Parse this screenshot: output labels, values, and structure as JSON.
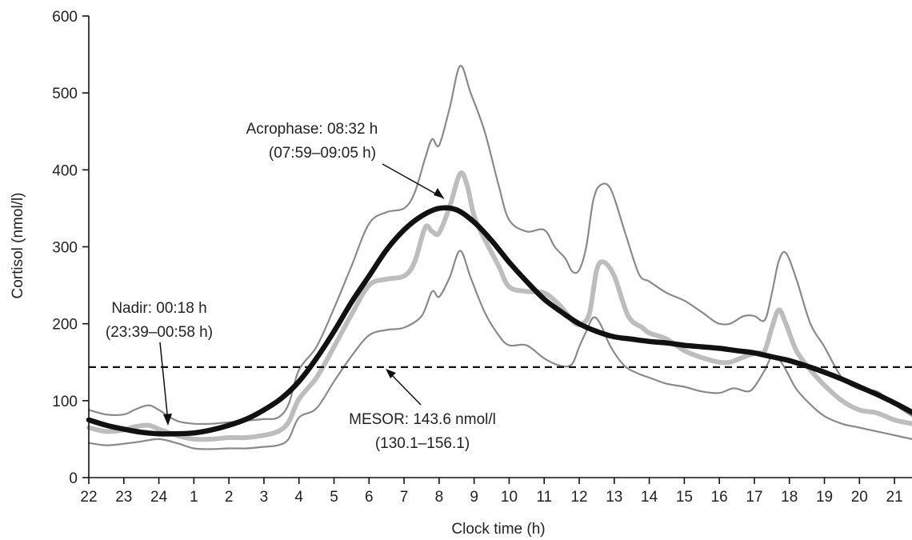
{
  "chart_data": {
    "type": "line",
    "xlabel": "Clock time (h)",
    "ylabel": "Cortisol (nmol/l)",
    "xlim": [
      22,
      45.5
    ],
    "ylim": [
      0,
      600
    ],
    "x_ticks": [
      22,
      23,
      24,
      25,
      26,
      27,
      28,
      29,
      30,
      31,
      32,
      33,
      34,
      35,
      36,
      37,
      38,
      39,
      40,
      41,
      42,
      43,
      44,
      45
    ],
    "x_tick_labels": [
      "22",
      "23",
      "24",
      "1",
      "2",
      "3",
      "4",
      "5",
      "6",
      "7",
      "8",
      "9",
      "10",
      "11",
      "12",
      "13",
      "14",
      "15",
      "16",
      "17",
      "18",
      "19",
      "20",
      "21"
    ],
    "y_ticks": [
      0,
      100,
      200,
      300,
      400,
      500,
      600
    ],
    "series": [
      {
        "role": "upper-bound",
        "color": "#8a8a8a",
        "width": 2.2,
        "x": [
          22,
          22.5,
          23,
          23.3,
          23.7,
          24,
          24.5,
          25,
          25.5,
          26,
          26.5,
          27,
          27.4,
          27.7,
          28,
          28.5,
          29,
          29.5,
          30,
          30.5,
          31,
          31.3,
          31.6,
          31.8,
          32,
          32.3,
          32.6,
          32.9,
          33.3,
          33.7,
          34,
          34.5,
          35,
          35.3,
          35.6,
          35.8,
          36,
          36.2,
          36.4,
          36.6,
          36.9,
          37.3,
          37.7,
          38,
          38.5,
          39,
          39.5,
          39.8,
          40,
          40.3,
          40.7,
          41,
          41.3,
          41.5,
          41.7,
          41.9,
          42.2,
          42.6,
          43,
          43.5,
          44,
          44.5,
          45,
          45.5
        ],
        "y": [
          88,
          82,
          82,
          88,
          94,
          88,
          74,
          70,
          70,
          72,
          74,
          76,
          78,
          95,
          140,
          170,
          220,
          275,
          330,
          345,
          350,
          370,
          415,
          440,
          432,
          480,
          535,
          500,
          450,
          380,
          335,
          320,
          322,
          300,
          285,
          268,
          270,
          300,
          360,
          380,
          375,
          320,
          265,
          255,
          240,
          230,
          215,
          205,
          200,
          200,
          210,
          210,
          205,
          240,
          282,
          292,
          258,
          200,
          170,
          130,
          115,
          112,
          95,
          80
        ]
      },
      {
        "role": "lower-bound",
        "color": "#8a8a8a",
        "width": 2.2,
        "x": [
          22,
          22.5,
          23,
          23.5,
          24,
          24.5,
          25,
          25.5,
          26,
          26.5,
          27,
          27.4,
          27.7,
          28,
          28.5,
          29,
          29.5,
          30,
          30.5,
          31,
          31.5,
          31.8,
          32,
          32.3,
          32.6,
          32.9,
          33.3,
          33.7,
          34,
          34.5,
          35,
          35.5,
          35.8,
          36,
          36.2,
          36.4,
          36.6,
          36.9,
          37.3,
          37.7,
          38,
          38.5,
          39,
          39.5,
          40,
          40.4,
          40.8,
          41,
          41.3,
          41.5,
          41.7,
          41.9,
          42.2,
          42.6,
          43,
          43.5,
          44,
          44.5,
          45,
          45.5
        ],
        "y": [
          45,
          42,
          44,
          47,
          50,
          45,
          38,
          37,
          38,
          38,
          40,
          42,
          50,
          78,
          90,
          125,
          158,
          185,
          192,
          195,
          210,
          242,
          235,
          260,
          295,
          260,
          215,
          185,
          172,
          172,
          155,
          145,
          148,
          170,
          190,
          208,
          200,
          170,
          145,
          135,
          130,
          122,
          118,
          112,
          110,
          116,
          112,
          118,
          140,
          158,
          154,
          140,
          115,
          95,
          80,
          70,
          65,
          60,
          55,
          50
        ]
      },
      {
        "role": "observed-mean",
        "color": "#bdbdbd",
        "width": 6,
        "x": [
          22,
          22.5,
          23,
          23.3,
          23.7,
          24,
          24.5,
          25,
          25.5,
          26,
          26.5,
          27,
          27.4,
          27.7,
          28,
          28.5,
          29,
          29.5,
          30,
          30.5,
          31,
          31.3,
          31.6,
          31.8,
          32,
          32.3,
          32.6,
          32.8,
          33,
          33.3,
          33.7,
          34,
          34.5,
          35,
          35.4,
          35.7,
          35.9,
          36.1,
          36.3,
          36.5,
          36.7,
          37,
          37.4,
          37.8,
          38,
          38.5,
          39,
          39.5,
          40,
          40.3,
          40.6,
          40.9,
          41.1,
          41.3,
          41.5,
          41.7,
          41.9,
          42.2,
          42.6,
          43,
          43.5,
          44,
          44.5,
          45,
          45.5
        ],
        "y": [
          65,
          60,
          62,
          66,
          68,
          63,
          55,
          50,
          50,
          52,
          52,
          55,
          60,
          72,
          102,
          130,
          170,
          212,
          250,
          258,
          262,
          280,
          325,
          320,
          318,
          352,
          395,
          380,
          340,
          310,
          275,
          248,
          242,
          240,
          226,
          210,
          200,
          200,
          215,
          270,
          280,
          262,
          210,
          195,
          188,
          180,
          165,
          156,
          150,
          150,
          155,
          160,
          162,
          165,
          195,
          218,
          200,
          165,
          140,
          120,
          100,
          88,
          84,
          75,
          70
        ]
      },
      {
        "role": "cosinor-fit",
        "color": "#111111",
        "width": 6.5,
        "x": [
          22,
          22.5,
          23,
          23.5,
          24,
          24.5,
          25,
          25.5,
          26,
          26.5,
          27,
          27.5,
          28,
          28.5,
          29,
          29.5,
          30,
          30.5,
          31,
          31.5,
          32,
          32.5,
          33,
          33.5,
          34,
          34.5,
          35,
          35.5,
          36,
          36.5,
          37,
          37.5,
          38,
          38.5,
          39,
          39.5,
          40,
          40.5,
          41,
          41.5,
          42,
          42.5,
          43,
          43.5,
          44,
          44.5,
          45,
          45.5
        ],
        "y": [
          75,
          68,
          63,
          59,
          57,
          57,
          58,
          62,
          68,
          76,
          88,
          103,
          125,
          155,
          190,
          228,
          262,
          296,
          322,
          340,
          350,
          348,
          332,
          308,
          280,
          255,
          232,
          215,
          200,
          190,
          183,
          180,
          177,
          175,
          172,
          170,
          168,
          165,
          162,
          157,
          152,
          145,
          137,
          128,
          118,
          108,
          97,
          85
        ]
      }
    ],
    "mesor": {
      "value": 143.6,
      "color": "#111111"
    },
    "annotations": [
      {
        "text": [
          "Acrophase: 08:32 h",
          "(07:59–09:05 h)"
        ]
      },
      {
        "text": [
          "Nadir: 00:18 h",
          "(23:39–00:58 h)"
        ]
      },
      {
        "text": [
          "MESOR: 143.6 nmol/l",
          "(130.1–156.1)"
        ]
      }
    ]
  }
}
